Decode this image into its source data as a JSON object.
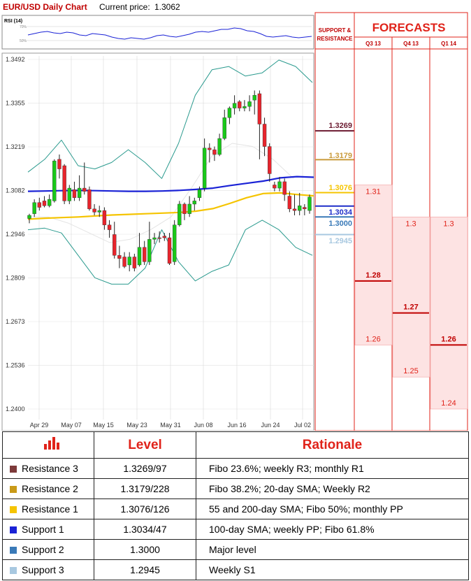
{
  "header": {
    "title": "EUR/USD Daily Chart",
    "price_label": "Current price:",
    "price_value": "1.3062"
  },
  "rsi": {
    "label": "RSI (14)",
    "levels": [
      "70%",
      "50%"
    ],
    "values": [
      58,
      60,
      62,
      63,
      61,
      60,
      62,
      61,
      58,
      57,
      60,
      59,
      58,
      55,
      53,
      52,
      54,
      53,
      52,
      54,
      57,
      58,
      56,
      55,
      57,
      59,
      62,
      63,
      62,
      64,
      66,
      66,
      68,
      67,
      64,
      63,
      60,
      56,
      55,
      56,
      57,
      55,
      54,
      55,
      56
    ]
  },
  "chart_data": {
    "type": "candlestick",
    "title": "EUR/USD Daily Chart",
    "x_tick_labels": [
      "Apr 29",
      "May 07",
      "May 15",
      "May 23",
      "May 31",
      "Jun 08",
      "Jun 16",
      "Jun 24",
      "Jul 02"
    ],
    "y_tick_labels": [
      "1.3492",
      "1.3355",
      "1.3219",
      "1.3082",
      "1.2946",
      "1.2809",
      "1.2673",
      "1.2536",
      "1.2400"
    ],
    "ylim": [
      1.24,
      1.3492
    ],
    "candles": [
      [
        1.2995,
        1.3005,
        1.298,
        1.301
      ],
      [
        1.301,
        1.3045,
        1.3,
        1.3055
      ],
      [
        1.3045,
        1.303,
        1.302,
        1.306
      ],
      [
        1.305,
        1.3035,
        1.303,
        1.3065
      ],
      [
        1.3035,
        1.3055,
        1.303,
        1.307
      ],
      [
        1.305,
        1.3175,
        1.3045,
        1.318
      ],
      [
        1.318,
        1.315,
        1.312,
        1.3195
      ],
      [
        1.316,
        1.305,
        1.304,
        1.3165
      ],
      [
        1.305,
        1.309,
        1.304,
        1.31
      ],
      [
        1.3085,
        1.306,
        1.305,
        1.311
      ],
      [
        1.306,
        1.309,
        1.305,
        1.313
      ],
      [
        1.309,
        1.308,
        1.307,
        1.317
      ],
      [
        1.3085,
        1.3025,
        1.302,
        1.3095
      ],
      [
        1.3025,
        1.3015,
        1.3005,
        1.304
      ],
      [
        1.3015,
        1.302,
        1.3,
        1.3035
      ],
      [
        1.302,
        1.2975,
        1.296,
        1.303
      ],
      [
        1.2975,
        1.296,
        1.2935,
        1.299
      ],
      [
        1.2945,
        1.288,
        1.287,
        1.2985
      ],
      [
        1.288,
        1.287,
        1.284,
        1.291
      ],
      [
        1.2875,
        1.2845,
        1.284,
        1.289
      ],
      [
        1.285,
        1.2875,
        1.283,
        1.289
      ],
      [
        1.2875,
        1.284,
        1.283,
        1.2885
      ],
      [
        1.285,
        1.2905,
        1.2845,
        1.295
      ],
      [
        1.2905,
        1.286,
        1.285,
        1.2925
      ],
      [
        1.286,
        1.293,
        1.285,
        1.2985
      ],
      [
        1.293,
        1.2935,
        1.2915,
        1.295
      ],
      [
        1.2935,
        1.2933,
        1.292,
        1.2955
      ],
      [
        1.294,
        1.2935,
        1.2925,
        1.295
      ],
      [
        1.2935,
        1.2855,
        1.285,
        1.295
      ],
      [
        1.286,
        1.2975,
        1.285,
        1.299
      ],
      [
        1.2975,
        1.304,
        1.297,
        1.305
      ],
      [
        1.304,
        1.301,
        1.299,
        1.3045
      ],
      [
        1.301,
        1.304,
        1.3,
        1.3065
      ],
      [
        1.304,
        1.305,
        1.302,
        1.306
      ],
      [
        1.306,
        1.3085,
        1.305,
        1.3095
      ],
      [
        1.309,
        1.3215,
        1.308,
        1.3245
      ],
      [
        1.3215,
        1.321,
        1.317,
        1.323
      ],
      [
        1.321,
        1.3195,
        1.3175,
        1.322
      ],
      [
        1.3195,
        1.3245,
        1.319,
        1.326
      ],
      [
        1.3245,
        1.331,
        1.324,
        1.3335
      ],
      [
        1.331,
        1.334,
        1.329,
        1.3345
      ],
      [
        1.334,
        1.3355,
        1.332,
        1.338
      ],
      [
        1.336,
        1.334,
        1.333,
        1.3365
      ],
      [
        1.334,
        1.3345,
        1.333,
        1.3365
      ],
      [
        1.3345,
        1.336,
        1.333,
        1.338
      ],
      [
        1.3365,
        1.338,
        1.332,
        1.3395
      ],
      [
        1.3385,
        1.329,
        1.318,
        1.3395
      ],
      [
        1.329,
        1.322,
        1.319,
        1.331
      ],
      [
        1.322,
        1.3135,
        1.311,
        1.323
      ],
      [
        1.31,
        1.309,
        1.308,
        1.311
      ],
      [
        1.309,
        1.311,
        1.308,
        1.3125
      ],
      [
        1.311,
        1.307,
        1.305,
        1.312
      ],
      [
        1.3065,
        1.3025,
        1.3015,
        1.308
      ],
      [
        1.3025,
        1.302,
        1.3005,
        1.307
      ],
      [
        1.302,
        1.3035,
        1.3005,
        1.3075
      ],
      [
        1.303,
        1.3025,
        1.3005,
        1.304
      ],
      [
        1.302,
        1.3062,
        1.301,
        1.307
      ]
    ],
    "overlays": {
      "sma_blue": [
        1.308,
        1.3081,
        1.3082,
        1.3083,
        1.3082,
        1.3081,
        1.308,
        1.308,
        1.3081,
        1.3083,
        1.3086,
        1.309,
        1.3098,
        1.3105,
        1.3112,
        1.3122,
        1.3126,
        1.3124
      ],
      "sma_yellow": [
        1.2993,
        1.2996,
        1.2998,
        1.3,
        1.3003,
        1.3006,
        1.3008,
        1.301,
        1.3012,
        1.3014,
        1.3018,
        1.3026,
        1.3042,
        1.306,
        1.3073,
        1.3075,
        1.307,
        1.3066
      ],
      "boll_upper": [
        1.314,
        1.318,
        1.324,
        1.316,
        1.315,
        1.317,
        1.321,
        1.317,
        1.312,
        1.323,
        1.338,
        1.346,
        1.347,
        1.344,
        1.345,
        1.349,
        1.347,
        1.342
      ],
      "boll_lower": [
        1.296,
        1.2965,
        1.295,
        1.288,
        1.281,
        1.279,
        1.279,
        1.284,
        1.296,
        1.286,
        1.28,
        1.283,
        1.285,
        1.296,
        1.299,
        1.296,
        1.2905,
        1.288
      ],
      "boll_mid": [
        1.3,
        1.3,
        1.298,
        1.295,
        1.292,
        1.293,
        1.296,
        1.3,
        1.309,
        1.319,
        1.323,
        1.322,
        1.318,
        1.312
      ]
    },
    "support_resistance": [
      {
        "label": "1.3269",
        "value": 1.3269,
        "color": "#6b1a30"
      },
      {
        "label": "1.3179",
        "value": 1.3179,
        "color": "#c99a3a"
      },
      {
        "label": "1.3076",
        "value": 1.3076,
        "color": "#f5c400"
      },
      {
        "label": "1.3034",
        "value": 1.3034,
        "color": "#1f2ec9"
      },
      {
        "label": "1.3000",
        "value": 1.3,
        "color": "#3a7ab8"
      },
      {
        "label": "1.2945",
        "value": 1.2945,
        "color": "#a8c8e0"
      }
    ],
    "forecasts": [
      {
        "quarter": "Q3 13",
        "top": "1.31",
        "top_value": 1.31,
        "mid": "1.28",
        "mid_value": 1.28,
        "low": "1.26",
        "low_value": 1.26
      },
      {
        "quarter": "Q4 13",
        "top": "1.3",
        "top_value": 1.3,
        "mid": "1.27",
        "mid_value": 1.27,
        "low": "1.25",
        "low_value": 1.25
      },
      {
        "quarter": "Q1 14",
        "top": "1.3",
        "top_value": 1.3,
        "mid": "1.26",
        "mid_value": 1.26,
        "low": "1.24",
        "low_value": 1.24
      }
    ],
    "colors": {
      "bull": "#19c919",
      "bear": "#e8242c",
      "sma_blue": "#1a22d6",
      "sma_yellow": "#f5c400",
      "bands": "#2a9a8e"
    }
  },
  "sr_header": "SUPPORT & RESISTANCE",
  "forecast_header": "FORECASTS",
  "table": {
    "level_header": "Level",
    "rationale_header": "Rationale",
    "rows": [
      {
        "name": "Resistance 3",
        "level": "1.3269/97",
        "rationale": "Fibo 23.6%; weekly R3; monthly R1",
        "color": "#7d3a3a"
      },
      {
        "name": "Resistance 2",
        "level": "1.3179/228",
        "rationale": "Fibo 38.2%; 20-day SMA; Weekly R2",
        "color": "#c99a18"
      },
      {
        "name": "Resistance 1",
        "level": "1.3076/126",
        "rationale": "55 and 200-day SMA; Fibo 50%; monthly PP",
        "color": "#f5c400"
      },
      {
        "name": "Support 1",
        "level": "1.3034/47",
        "rationale": "100-day SMA; weekly PP; Fibo 61.8%",
        "color": "#1a22d6"
      },
      {
        "name": "Support 2",
        "level": "1.3000",
        "rationale": "Major level",
        "color": "#3a7ab8"
      },
      {
        "name": "Support 3",
        "level": "1.2945",
        "rationale": "Weekly S1",
        "color": "#a8c8e0"
      }
    ]
  }
}
